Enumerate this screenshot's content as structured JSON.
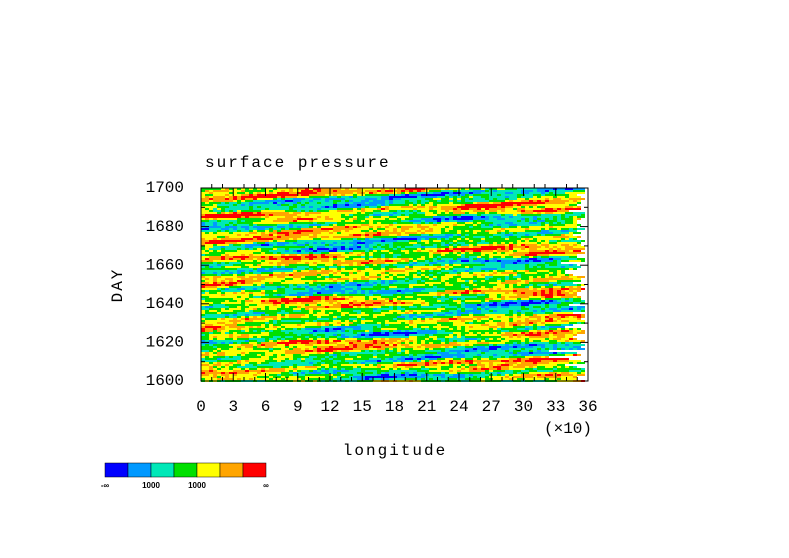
{
  "chart_data": {
    "type": "heatmap",
    "title": "surface pressure",
    "x_label": "longitude",
    "x_multiplier": "(×10)",
    "y_label": "DAY",
    "xlim": [
      0,
      36
    ],
    "xticks": [
      0,
      3,
      6,
      9,
      12,
      15,
      18,
      21,
      24,
      27,
      30,
      33,
      36
    ],
    "ylim": [
      1600,
      1700
    ],
    "yticks": [
      1600,
      1620,
      1640,
      1660,
      1680,
      1700
    ],
    "colorbar": {
      "colors": [
        "#0000ff",
        "#0099ff",
        "#00e8b8",
        "#00e000",
        "#ffff00",
        "#ffa500",
        "#ff0000"
      ],
      "labels": [
        "-∞",
        null,
        "1000",
        null,
        "1000",
        null,
        null,
        "∞"
      ]
    }
  }
}
